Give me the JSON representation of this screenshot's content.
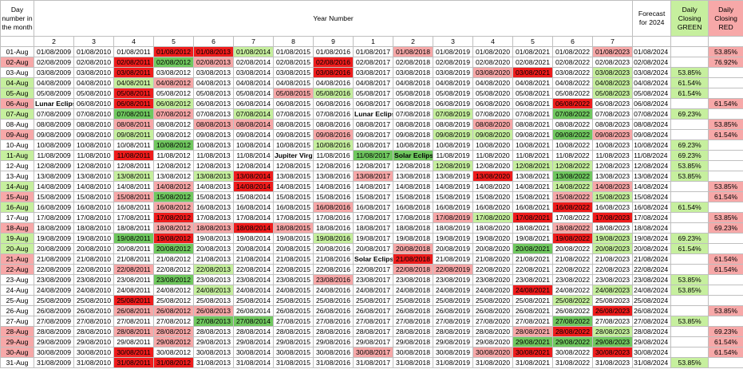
{
  "headers": {
    "day": "Day number in the month",
    "year_number": "Year Number",
    "forecast": "Forecast for 2024",
    "green": "Daily Closing GREEN",
    "red": "Daily Closing RED"
  },
  "year_numbers": [
    "2",
    "3",
    "4",
    "5",
    "6",
    "7",
    "8",
    "9",
    "1",
    "2",
    "3",
    "4",
    "5",
    "6",
    "7"
  ],
  "years": [
    "2009",
    "2010",
    "2011",
    "2012",
    "2013",
    "2014",
    "2015",
    "2016",
    "2017",
    "2018",
    "2019",
    "2020",
    "2021",
    "2022",
    "2023"
  ],
  "colors": {
    "light_green": "#c6ef9e",
    "dark_green": "#70c85f",
    "light_red": "#f7a8a8",
    "dark_red": "#ef1c1c"
  },
  "color_codes": {
    "g": "light_green",
    "G": "dark_green",
    "r": "light_red",
    "R": "dark_red",
    ".": "none"
  },
  "rows": [
    {
      "day": "01-Aug",
      "date_label_color": ".",
      "colors": "...RRg...r....r",
      "events": {},
      "green": "",
      "red": "53.85%"
    },
    {
      "day": "02-Aug",
      "date_label_color": "r",
      "colors": "..RGr..R.......",
      "events": {},
      "green": "",
      "red": "76.92%"
    },
    {
      "day": "03-Aug",
      "date_label_color": ".",
      "colors": "..R....R...rR.g",
      "events": {},
      "green": "53.85%",
      "red": ""
    },
    {
      "day": "04-Aug",
      "date_label_color": "g",
      "colors": "..gr..........g",
      "events": {},
      "green": "61.54%",
      "red": ""
    },
    {
      "day": "05-Aug",
      "date_label_color": "g",
      "colors": "..R...rg......g",
      "events": {},
      "green": "61.54%",
      "red": ""
    },
    {
      "day": "06-Aug",
      "date_label_color": "r",
      "colors": "..Rg.........R.",
      "events": {
        "0": "Lunar Eclips"
      },
      "green": "",
      "red": "61.54%"
    },
    {
      "day": "07-Aug",
      "date_label_color": "g",
      "colors": "..Gr.g....g..G.",
      "events": {
        "8": "Lunar Eclipse"
      },
      "green": "69.23%",
      "red": ""
    },
    {
      "day": "08-Aug",
      "date_label_color": ".",
      "colors": "..r.rr.....r...",
      "events": {},
      "green": "",
      "red": "53.85%"
    },
    {
      "day": "09-Aug",
      "date_label_color": "r",
      "colors": "..g....r..gg.Gr",
      "events": {},
      "green": "",
      "red": "61.54%"
    },
    {
      "day": "10-Aug",
      "date_label_color": ".",
      "colors": "...G...g.......",
      "events": {},
      "green": "69.23%",
      "red": ""
    },
    {
      "day": "11-Aug",
      "date_label_color": "g",
      "colors": "..R.....GG.....",
      "events": {
        "6": "Jupiter Virg",
        "9": "Solar Eclips"
      },
      "green": "69.23%",
      "red": ""
    },
    {
      "day": "12-Aug",
      "date_label_color": ".",
      "colors": "..........g.gg.",
      "events": {},
      "green": "53.85%",
      "red": ""
    },
    {
      "day": "13-Aug",
      "date_label_color": ".",
      "colors": "..g.gR..r..R.G.",
      "events": {},
      "green": "53.85%",
      "red": ""
    },
    {
      "day": "14-Aug",
      "date_label_color": "g",
      "colors": "...r.R.......gr",
      "events": {},
      "green": "",
      "red": "53.85%"
    },
    {
      "day": "15-Aug",
      "date_label_color": "r",
      "colors": "..rG.........rg",
      "events": {},
      "green": "",
      "red": "61.54%"
    },
    {
      "day": "16-Aug",
      "date_label_color": "g",
      "colors": "...r...r.....R.",
      "events": {},
      "green": "61.54%",
      "red": ""
    },
    {
      "day": "17-Aug",
      "date_label_color": ".",
      "colors": "...R......rgR.R",
      "events": {},
      "green": "",
      "red": "53.85%"
    },
    {
      "day": "18-Aug",
      "date_label_color": "r",
      "colors": "...rrRr......r.",
      "events": {},
      "green": "",
      "red": "69.23%"
    },
    {
      "day": "19-Aug",
      "date_label_color": "g",
      "colors": "..GR...g.....Rg",
      "events": {},
      "green": "69.23%",
      "red": ""
    },
    {
      "day": "20-Aug",
      "date_label_color": "g",
      "colors": "...G.....r..G.g",
      "events": {},
      "green": "61.54%",
      "red": ""
    },
    {
      "day": "21-Aug",
      "date_label_color": "r",
      "colors": ".........R.....",
      "events": {
        "8": "Solar Eclipse"
      },
      "green": "",
      "red": "61.54%"
    },
    {
      "day": "22-Aug",
      "date_label_color": "r",
      "colors": "..r.g....rr....",
      "events": {},
      "green": "",
      "red": "61.54%"
    },
    {
      "day": "23-Aug",
      "date_label_color": ".",
      "colors": "...G...r.......",
      "events": {},
      "green": "53.85%",
      "red": ""
    },
    {
      "day": "24-Aug",
      "date_label_color": ".",
      "colors": "....g.......R.g",
      "events": {},
      "green": "53.85%",
      "red": ""
    },
    {
      "day": "25-Aug",
      "date_label_color": ".",
      "colors": "..R..........g.",
      "events": {},
      "green": "",
      "red": ""
    },
    {
      "day": "26-Aug",
      "date_label_color": ".",
      "colors": "..rrr.........R",
      "events": {},
      "green": "",
      "red": "53.85%"
    },
    {
      "day": "27-Aug",
      "date_label_color": ".",
      "colors": "....GG.......G.",
      "events": {},
      "green": "53.85%",
      "red": ""
    },
    {
      "day": "28-Aug",
      "date_label_color": "r",
      "colors": "..rr........rRg",
      "events": {},
      "green": "",
      "red": "69.23%"
    },
    {
      "day": "29-Aug",
      "date_label_color": "r",
      "colors": "...r........GGG",
      "events": {},
      "green": "",
      "red": "61.54%"
    },
    {
      "day": "30-Aug",
      "date_label_color": "r",
      "colors": "..R.....r..rR.R",
      "events": {},
      "green": "",
      "red": "61.54%"
    },
    {
      "day": "31-Aug",
      "date_label_color": ".",
      "colors": "..RR...........",
      "events": {},
      "green": "53.85%",
      "red": ""
    }
  ]
}
